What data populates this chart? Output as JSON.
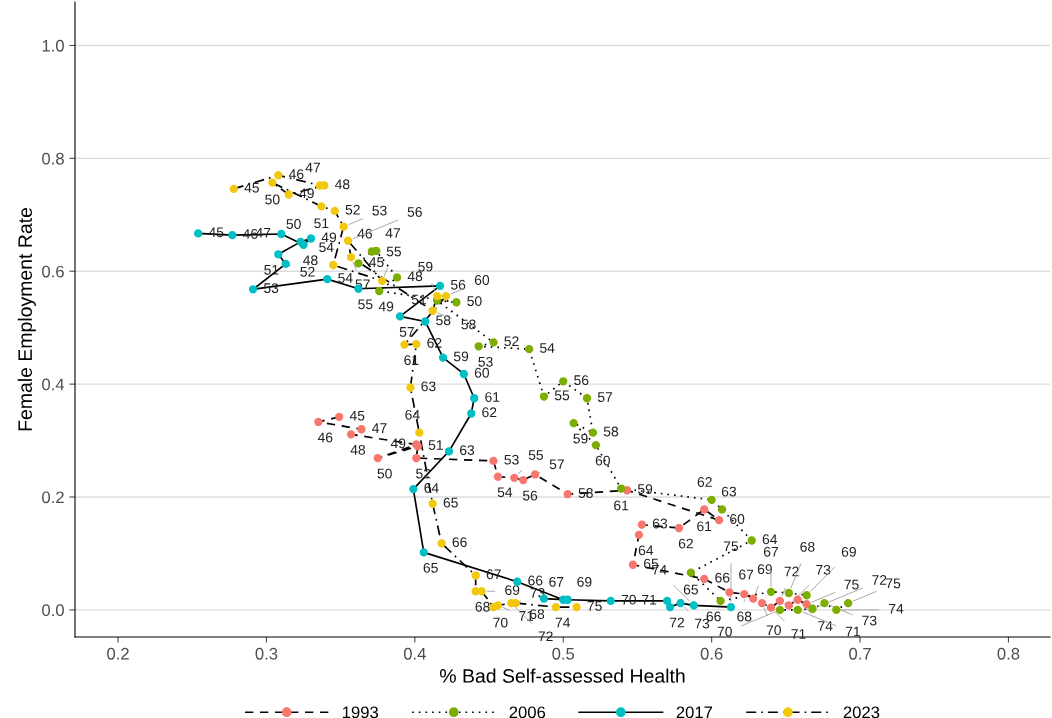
{
  "chart_data": {
    "type": "line",
    "xlabel": "% Bad Self-assessed Health",
    "ylabel": "Female Employment Rate",
    "xlim": [
      0.171,
      0.828
    ],
    "ylim": [
      -0.048,
      1.077
    ],
    "xticks": [
      0.2,
      0.3,
      0.4,
      0.5,
      0.6,
      0.7,
      0.8
    ],
    "yticks": [
      {
        "value": 0,
        "label": "0.0"
      },
      0.2,
      0.4,
      0.6,
      0.8,
      {
        "value": 1,
        "label": "1.0"
      }
    ],
    "grid": "y",
    "legend": "bottom",
    "marker": "circle",
    "series": [
      {
        "name": "1993",
        "color": "#f8766d",
        "line_style": "dashed",
        "x": [
          0.349,
          0.335,
          0.364,
          0.357,
          0.401,
          0.375,
          0.402,
          0.401,
          0.453,
          0.456,
          0.467,
          0.473,
          0.481,
          0.503,
          0.543,
          0.605,
          0.595,
          0.578,
          0.553,
          0.551,
          0.547,
          0.595,
          0.612,
          0.622,
          0.628,
          0.634,
          0.64,
          0.646,
          0.652,
          0.658,
          0.664
        ],
        "values": [
          0.342,
          0.333,
          0.32,
          0.311,
          0.293,
          0.269,
          0.29,
          0.269,
          0.264,
          0.236,
          0.234,
          0.23,
          0.24,
          0.205,
          0.212,
          0.159,
          0.178,
          0.145,
          0.151,
          0.133,
          0.08,
          0.055,
          0.031,
          0.028,
          0.02,
          0.012,
          0.004,
          0.016,
          0.008,
          0.018,
          0.01
        ]
      },
      {
        "name": "2006",
        "color": "#7cae00",
        "line_style": "dotted",
        "x": [
          0.362,
          0.371,
          0.374,
          0.388,
          0.376,
          0.428,
          0.415,
          0.453,
          0.443,
          0.477,
          0.487,
          0.5,
          0.516,
          0.52,
          0.507,
          0.522,
          0.539,
          0.6,
          0.607,
          0.627,
          0.586,
          0.606,
          0.64,
          0.652,
          0.664,
          0.646,
          0.658,
          0.668,
          0.676,
          0.684,
          0.692
        ],
        "values": [
          0.614,
          0.635,
          0.636,
          0.589,
          0.565,
          0.545,
          0.548,
          0.474,
          0.467,
          0.462,
          0.378,
          0.405,
          0.375,
          0.314,
          0.331,
          0.292,
          0.215,
          0.195,
          0.178,
          0.123,
          0.066,
          0.016,
          0.032,
          0.03,
          0.026,
          0.0,
          0.0,
          0.002,
          0.012,
          0.0,
          0.012
        ]
      },
      {
        "name": "2017",
        "color": "#00bfc4",
        "line_style": "solid",
        "x": [
          0.254,
          0.277,
          0.31,
          0.325,
          0.33,
          0.323,
          0.308,
          0.313,
          0.291,
          0.341,
          0.362,
          0.417,
          0.39,
          0.407,
          0.419,
          0.433,
          0.44,
          0.438,
          0.423,
          0.399,
          0.406,
          0.469,
          0.5,
          0.487,
          0.503,
          0.532,
          0.57,
          0.572,
          0.579,
          0.588,
          0.613
        ],
        "values": [
          0.667,
          0.664,
          0.666,
          0.647,
          0.658,
          0.652,
          0.63,
          0.613,
          0.568,
          0.586,
          0.569,
          0.574,
          0.52,
          0.511,
          0.447,
          0.418,
          0.375,
          0.348,
          0.281,
          0.214,
          0.102,
          0.05,
          0.018,
          0.02,
          0.018,
          0.016,
          0.016,
          0.005,
          0.012,
          0.008,
          0.005
        ]
      },
      {
        "name": "2023",
        "color": "#f2c80f",
        "line_style": "dashdot",
        "x": [
          0.278,
          0.308,
          0.336,
          0.339,
          0.315,
          0.304,
          0.337,
          0.346,
          0.352,
          0.345,
          0.378,
          0.355,
          0.357,
          0.412,
          0.415,
          0.421,
          0.393,
          0.401,
          0.397,
          0.403,
          0.412,
          0.418,
          0.441,
          0.441,
          0.445,
          0.453,
          0.456,
          0.465,
          0.468,
          0.495,
          0.509
        ],
        "values": [
          0.746,
          0.77,
          0.752,
          0.752,
          0.736,
          0.757,
          0.715,
          0.707,
          0.679,
          0.611,
          0.583,
          0.654,
          0.625,
          0.53,
          0.556,
          0.556,
          0.47,
          0.471,
          0.394,
          0.314,
          0.188,
          0.118,
          0.061,
          0.033,
          0.033,
          0.005,
          0.008,
          0.012,
          0.012,
          0.005,
          0.005
        ]
      }
    ],
    "annotations": [
      {
        "text": "45",
        "x": 0.349,
        "y": 0.342
      },
      {
        "text": "46",
        "x": 0.335,
        "y": 0.333
      },
      {
        "text": "47",
        "x": 0.364,
        "y": 0.32
      },
      {
        "text": "48",
        "x": 0.357,
        "y": 0.311
      },
      {
        "text": "49",
        "x": 0.401,
        "y": 0.293
      },
      {
        "text": "50",
        "x": 0.375,
        "y": 0.269
      },
      {
        "text": "51",
        "x": 0.402,
        "y": 0.29
      },
      {
        "text": "52",
        "x": 0.401,
        "y": 0.269
      },
      {
        "text": "53",
        "x": 0.453,
        "y": 0.264
      },
      {
        "text": "54",
        "x": 0.456,
        "y": 0.236
      },
      {
        "text": "55",
        "x": 0.467,
        "y": 0.234
      },
      {
        "text": "56",
        "x": 0.473,
        "y": 0.23
      },
      {
        "text": "57",
        "x": 0.481,
        "y": 0.24
      },
      {
        "text": "58",
        "x": 0.503,
        "y": 0.205
      },
      {
        "text": "59",
        "x": 0.543,
        "y": 0.212
      },
      {
        "text": "60",
        "x": 0.605,
        "y": 0.159
      },
      {
        "text": "61",
        "x": 0.595,
        "y": 0.178
      },
      {
        "text": "62",
        "x": 0.578,
        "y": 0.145
      },
      {
        "text": "63",
        "x": 0.553,
        "y": 0.151
      },
      {
        "text": "64",
        "x": 0.551,
        "y": 0.133
      },
      {
        "text": "65",
        "x": 0.547,
        "y": 0.08
      },
      {
        "text": "66",
        "x": 0.595,
        "y": 0.055
      },
      {
        "text": "67",
        "x": 0.612,
        "y": 0.031
      },
      {
        "text": "68",
        "x": 0.622,
        "y": 0.028
      },
      {
        "text": "69",
        "x": 0.628,
        "y": 0.02
      },
      {
        "text": "70",
        "x": 0.634,
        "y": 0.012
      },
      {
        "text": "71",
        "x": 0.64,
        "y": 0.004
      },
      {
        "text": "72",
        "x": 0.646,
        "y": 0.016
      },
      {
        "text": "73",
        "x": 0.652,
        "y": 0.008
      },
      {
        "text": "74",
        "x": 0.658,
        "y": 0.018
      },
      {
        "text": "75",
        "x": 0.664,
        "y": 0.01
      },
      {
        "text": "45",
        "x": 0.362,
        "y": 0.614
      },
      {
        "text": "46",
        "x": 0.371,
        "y": 0.635
      },
      {
        "text": "47",
        "x": 0.374,
        "y": 0.636
      },
      {
        "text": "48",
        "x": 0.388,
        "y": 0.589
      },
      {
        "text": "49",
        "x": 0.376,
        "y": 0.565
      },
      {
        "text": "50",
        "x": 0.428,
        "y": 0.545
      },
      {
        "text": "51",
        "x": 0.415,
        "y": 0.548
      },
      {
        "text": "52",
        "x": 0.453,
        "y": 0.474
      },
      {
        "text": "53",
        "x": 0.443,
        "y": 0.467
      },
      {
        "text": "54",
        "x": 0.477,
        "y": 0.462
      },
      {
        "text": "55",
        "x": 0.487,
        "y": 0.378
      },
      {
        "text": "56",
        "x": 0.5,
        "y": 0.405
      },
      {
        "text": "57",
        "x": 0.516,
        "y": 0.375
      },
      {
        "text": "58",
        "x": 0.52,
        "y": 0.314
      },
      {
        "text": "59",
        "x": 0.507,
        "y": 0.331
      },
      {
        "text": "60",
        "x": 0.522,
        "y": 0.292
      },
      {
        "text": "61",
        "x": 0.539,
        "y": 0.215
      },
      {
        "text": "62",
        "x": 0.6,
        "y": 0.195
      },
      {
        "text": "63",
        "x": 0.607,
        "y": 0.178
      },
      {
        "text": "64",
        "x": 0.627,
        "y": 0.123
      },
      {
        "text": "65",
        "x": 0.586,
        "y": 0.066
      },
      {
        "text": "66",
        "x": 0.606,
        "y": 0.016
      },
      {
        "text": "67",
        "x": 0.64,
        "y": 0.032
      },
      {
        "text": "68",
        "x": 0.652,
        "y": 0.03
      },
      {
        "text": "69",
        "x": 0.664,
        "y": 0.026
      },
      {
        "text": "70",
        "x": 0.646,
        "y": 0.0
      },
      {
        "text": "71",
        "x": 0.658,
        "y": 0.0
      },
      {
        "text": "72",
        "x": 0.668,
        "y": 0.002
      },
      {
        "text": "73",
        "x": 0.676,
        "y": 0.012
      },
      {
        "text": "74",
        "x": 0.684,
        "y": 0.0
      },
      {
        "text": "75",
        "x": 0.692,
        "y": 0.012
      },
      {
        "text": "45",
        "x": 0.254,
        "y": 0.667
      },
      {
        "text": "46",
        "x": 0.277,
        "y": 0.664
      },
      {
        "text": "47",
        "x": 0.31,
        "y": 0.666
      },
      {
        "text": "48",
        "x": 0.325,
        "y": 0.647
      },
      {
        "text": "49",
        "x": 0.33,
        "y": 0.658
      },
      {
        "text": "50",
        "x": 0.323,
        "y": 0.652
      },
      {
        "text": "51",
        "x": 0.308,
        "y": 0.63
      },
      {
        "text": "52",
        "x": 0.313,
        "y": 0.613
      },
      {
        "text": "53",
        "x": 0.291,
        "y": 0.568
      },
      {
        "text": "54",
        "x": 0.341,
        "y": 0.586
      },
      {
        "text": "55",
        "x": 0.362,
        "y": 0.569
      },
      {
        "text": "56",
        "x": 0.417,
        "y": 0.574
      },
      {
        "text": "57",
        "x": 0.39,
        "y": 0.52
      },
      {
        "text": "58",
        "x": 0.407,
        "y": 0.511
      },
      {
        "text": "59",
        "x": 0.419,
        "y": 0.447
      },
      {
        "text": "60",
        "x": 0.433,
        "y": 0.418
      },
      {
        "text": "61",
        "x": 0.44,
        "y": 0.375
      },
      {
        "text": "62",
        "x": 0.438,
        "y": 0.348
      },
      {
        "text": "63",
        "x": 0.423,
        "y": 0.281
      },
      {
        "text": "64",
        "x": 0.399,
        "y": 0.214
      },
      {
        "text": "65",
        "x": 0.406,
        "y": 0.102
      },
      {
        "text": "66",
        "x": 0.469,
        "y": 0.05
      },
      {
        "text": "67",
        "x": 0.5,
        "y": 0.018
      },
      {
        "text": "68",
        "x": 0.487,
        "y": 0.02
      },
      {
        "text": "69",
        "x": 0.503,
        "y": 0.018
      },
      {
        "text": "70",
        "x": 0.532,
        "y": 0.016
      },
      {
        "text": "71",
        "x": 0.57,
        "y": 0.016
      },
      {
        "text": "72",
        "x": 0.572,
        "y": 0.005
      },
      {
        "text": "73",
        "x": 0.579,
        "y": 0.012
      },
      {
        "text": "74",
        "x": 0.588,
        "y": 0.008
      },
      {
        "text": "75",
        "x": 0.613,
        "y": 0.005
      },
      {
        "text": "45",
        "x": 0.278,
        "y": 0.746
      },
      {
        "text": "46",
        "x": 0.308,
        "y": 0.77
      },
      {
        "text": "47",
        "x": 0.336,
        "y": 0.752
      },
      {
        "text": "48",
        "x": 0.339,
        "y": 0.752
      },
      {
        "text": "49",
        "x": 0.315,
        "y": 0.736
      },
      {
        "text": "50",
        "x": 0.304,
        "y": 0.757
      },
      {
        "text": "51",
        "x": 0.337,
        "y": 0.715
      },
      {
        "text": "52",
        "x": 0.346,
        "y": 0.707
      },
      {
        "text": "53",
        "x": 0.352,
        "y": 0.679
      },
      {
        "text": "54",
        "x": 0.345,
        "y": 0.611
      },
      {
        "text": "55",
        "x": 0.378,
        "y": 0.583
      },
      {
        "text": "56",
        "x": 0.355,
        "y": 0.654
      },
      {
        "text": "57",
        "x": 0.357,
        "y": 0.625
      },
      {
        "text": "58",
        "x": 0.412,
        "y": 0.53
      },
      {
        "text": "59",
        "x": 0.415,
        "y": 0.556
      },
      {
        "text": "60",
        "x": 0.421,
        "y": 0.556
      },
      {
        "text": "61",
        "x": 0.393,
        "y": 0.47
      },
      {
        "text": "62",
        "x": 0.401,
        "y": 0.471
      },
      {
        "text": "63",
        "x": 0.397,
        "y": 0.394
      },
      {
        "text": "64",
        "x": 0.403,
        "y": 0.314
      },
      {
        "text": "65",
        "x": 0.412,
        "y": 0.188
      },
      {
        "text": "66",
        "x": 0.418,
        "y": 0.118
      },
      {
        "text": "67",
        "x": 0.441,
        "y": 0.061
      },
      {
        "text": "68",
        "x": 0.441,
        "y": 0.033
      },
      {
        "text": "69",
        "x": 0.445,
        "y": 0.033
      },
      {
        "text": "70",
        "x": 0.453,
        "y": 0.005
      },
      {
        "text": "71",
        "x": 0.456,
        "y": 0.008
      },
      {
        "text": "72",
        "x": 0.465,
        "y": 0.012
      },
      {
        "text": "73",
        "x": 0.468,
        "y": 0.012
      },
      {
        "text": "74",
        "x": 0.495,
        "y": 0.005
      },
      {
        "text": "75",
        "x": 0.509,
        "y": 0.005
      }
    ]
  }
}
